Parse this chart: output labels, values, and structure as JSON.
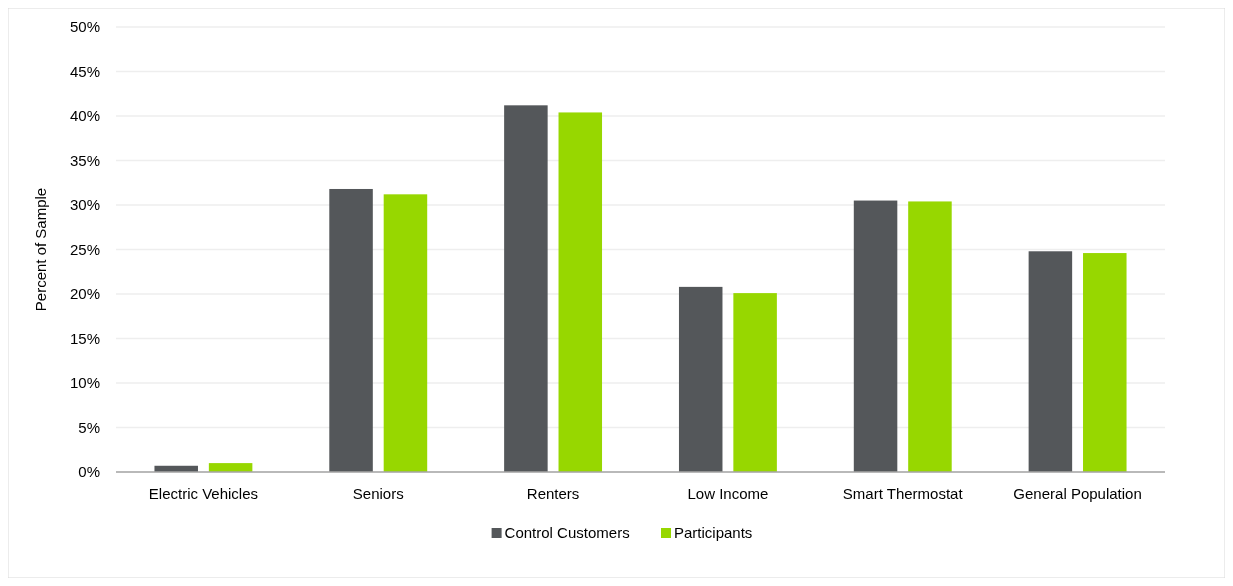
{
  "chart_data": {
    "type": "bar",
    "ylabel": "Percent of Sample",
    "categories": [
      "Electric Vehicles",
      "Seniors",
      "Renters",
      "Low Income",
      "Smart Thermostat",
      "General Population"
    ],
    "series": [
      {
        "name": "Control Customers",
        "color": "#54575a",
        "values": [
          0.7,
          31.8,
          41.2,
          20.8,
          30.5,
          24.8
        ]
      },
      {
        "name": "Participants",
        "color": "#97d700",
        "values": [
          1.0,
          31.2,
          40.4,
          20.1,
          30.4,
          24.6
        ]
      }
    ],
    "ylim": [
      0,
      50
    ],
    "yticks": [
      {
        "value": 0,
        "label": "0%"
      },
      {
        "value": 5,
        "label": "5%"
      },
      {
        "value": 10,
        "label": "10%"
      },
      {
        "value": 15,
        "label": "15%"
      },
      {
        "value": 20,
        "label": "20%"
      },
      {
        "value": 25,
        "label": "25%"
      },
      {
        "value": 30,
        "label": "30%"
      },
      {
        "value": 35,
        "label": "35%"
      },
      {
        "value": 40,
        "label": "40%"
      },
      {
        "value": 45,
        "label": "45%"
      },
      {
        "value": 50,
        "label": "50%"
      }
    ],
    "grid": "y",
    "legend": "bottom"
  }
}
